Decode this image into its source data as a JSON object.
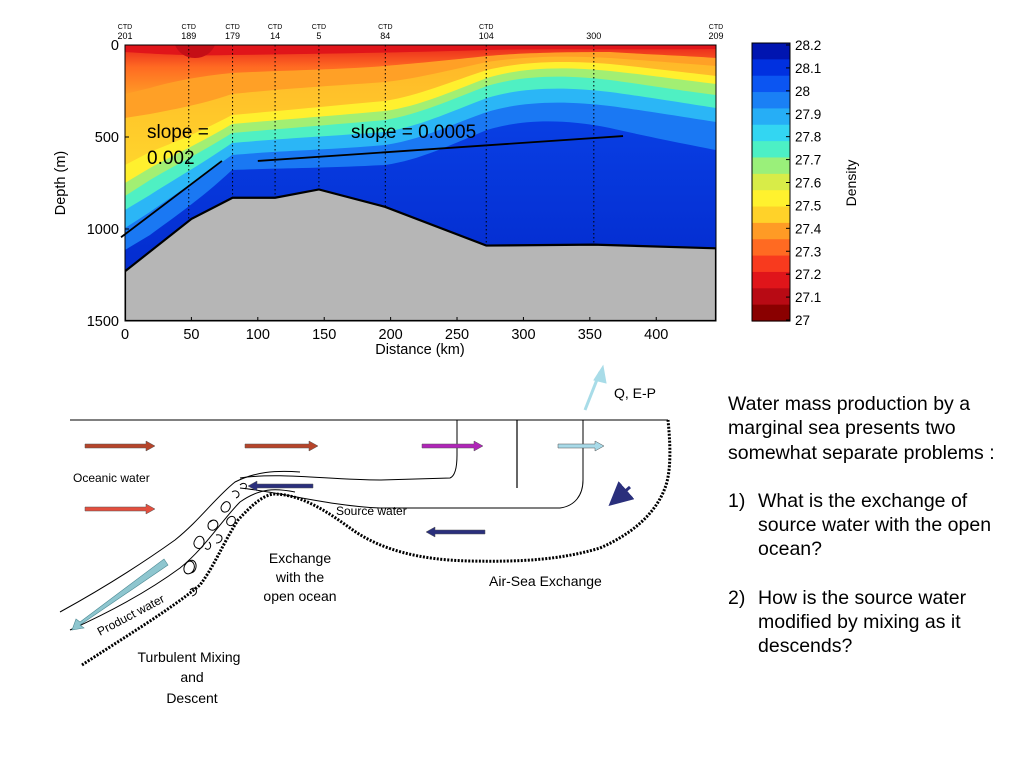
{
  "chart_data": {
    "type": "heatmap",
    "xlabel": "Distance (km)",
    "ylabel": "Depth (m)",
    "xlim": [
      0,
      445
    ],
    "ylim": [
      1500,
      0
    ],
    "x_ticks": [
      "0",
      "50",
      "100",
      "150",
      "200",
      "250",
      "300",
      "350",
      "400"
    ],
    "y_ticks": [
      "0",
      "500",
      "1000",
      "1500"
    ],
    "stations": [
      {
        "top": "CTD",
        "bottom": "201",
        "x": 0
      },
      {
        "top": "CTD",
        "bottom": "189",
        "x": 48
      },
      {
        "top": "CTD",
        "bottom": "179",
        "x": 81
      },
      {
        "top": "CTD",
        "bottom": "14",
        "x": 113
      },
      {
        "top": "CTD",
        "bottom": "5",
        "x": 146
      },
      {
        "top": "CTD",
        "bottom": "84",
        "x": 196
      },
      {
        "top": "CTD",
        "bottom": "104",
        "x": 272
      },
      {
        "top": "",
        "bottom": "300",
        "x": 353
      },
      {
        "top": "CTD",
        "bottom": "209",
        "x": 445
      }
    ],
    "bottom_profile": [
      [
        0,
        1230
      ],
      [
        50,
        945
      ],
      [
        81,
        830
      ],
      [
        113,
        830
      ],
      [
        146,
        785
      ],
      [
        196,
        880
      ],
      [
        272,
        1090
      ],
      [
        353,
        1085
      ],
      [
        445,
        1105
      ]
    ],
    "slope_lines": [
      {
        "label": "slope = 0.002",
        "text_lines": [
          "slope =",
          "0.002"
        ],
        "from": [
          -3,
          1045
        ],
        "to": [
          73,
          630
        ]
      },
      {
        "label": "slope = 0.0005",
        "text_lines": [
          "slope = 0.0005"
        ],
        "from": [
          100,
          630
        ],
        "to": [
          375,
          495
        ]
      }
    ],
    "colorbar": {
      "label": "Density",
      "ticks": [
        "28.2",
        "28.1",
        "28",
        "27.9",
        "27.8",
        "27.7",
        "27.6",
        "27.5",
        "27.4",
        "27.3",
        "27.2",
        "27.1",
        "27"
      ],
      "colors": [
        "#0015b0",
        "#0030e0",
        "#0b55f2",
        "#1a80f5",
        "#26aef6",
        "#33d6f2",
        "#4cf0c5",
        "#9af07a",
        "#d8ec48",
        "#fff22e",
        "#ffd229",
        "#ff9b25",
        "#ff6a22",
        "#f83a1e",
        "#e0151a",
        "#b80a14",
        "#8a0000"
      ]
    }
  },
  "diagram": {
    "labels": {
      "oceanic": "Oceanic water",
      "source": "Source water",
      "product": "Product water",
      "qep": "Q, E-P",
      "exchange": [
        "Exchange",
        "with the",
        "open ocean"
      ],
      "airsea": "Air-Sea Exchange",
      "mixing": [
        "Turbulent Mixing",
        "and",
        "Descent"
      ]
    },
    "arrow_colors": {
      "oceanic_upper": "#b6442a",
      "oceanic_lower": "#e34f3e",
      "purple": "#b025b8",
      "lightblue": "#a8dae8",
      "navy": "#2a2f7c",
      "qep": "#a8dce8"
    }
  },
  "explanation": {
    "intro": "Water mass production by a marginal sea presents two somewhat separate problems :",
    "q1_num": "1)",
    "q1": "What is the exchange of source water with the open ocean?",
    "q2_num": "2)",
    "q2": "How is the source water modified by mixing as it descends?"
  }
}
